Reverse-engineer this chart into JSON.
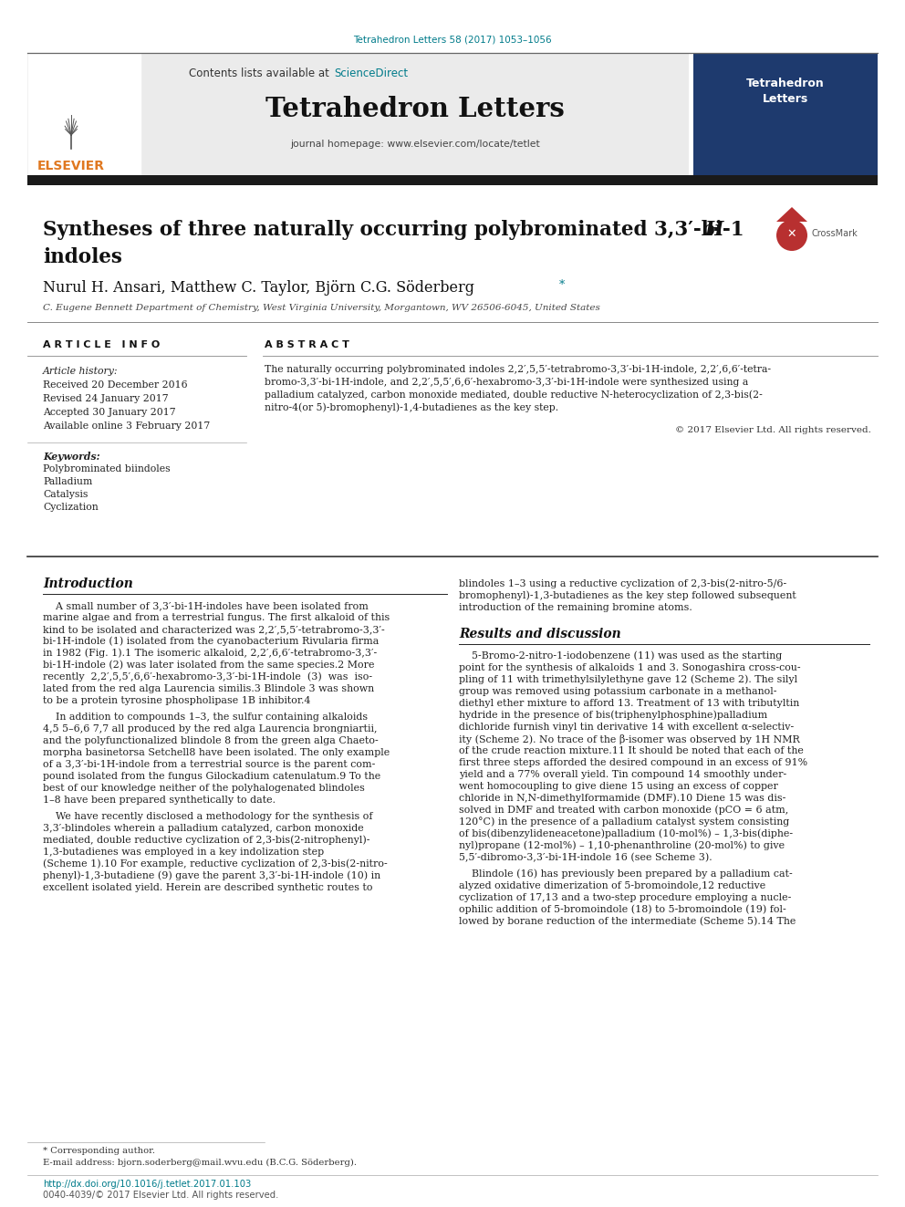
{
  "figsize": [
    9.92,
    13.23
  ],
  "dpi": 100,
  "bg_color": "#ffffff",
  "teal_color": "#007B8A",
  "orange_color": "#E07820",
  "dark_color": "#1a1a1a",
  "gray_bg": "#EBEBEB",
  "journal_ref": "Tetrahedron Letters 58 (2017) 1053–1056",
  "journal_title": "Tetrahedron Letters",
  "journal_homepage": "journal homepage: www.elsevier.com/locate/tetlet",
  "contents_prefix": "Contents lists available at ",
  "sciencedirect": "ScienceDirect",
  "title_line1": "Syntheses of three naturally occurring polybrominated 3,3′-bi-1",
  "title_H": "H",
  "title_line2": "indoles",
  "authors": "Nurul H. Ansari, Matthew C. Taylor, Björn C.G. Söderberg",
  "affil": "C. Eugene Bennett Department of Chemistry, West Virginia University, Morgantown, WV 26506-6045, United States",
  "art_info_header": "A R T I C L E   I N F O",
  "abstract_header": "A B S T R A C T",
  "art_history_label": "Article history:",
  "art_history": [
    "Received 20 December 2016",
    "Revised 24 January 2017",
    "Accepted 30 January 2017",
    "Available online 3 February 2017"
  ],
  "kw_label": "Keywords:",
  "keywords": [
    "Polybrominated biindoles",
    "Palladium",
    "Catalysis",
    "Cyclization"
  ],
  "abstract_lines": [
    "The naturally occurring polybrominated indoles 2,2′,5,5′-tetrabromo-3,3′-bi-1H-indole, 2,2′,6,6′-tetra-",
    "bromo-3,3′-bi-1H-indole, and 2,2′,5,5′,6,6′-hexabromo-3,3′-bi-1H-indole were synthesized using a",
    "palladium catalyzed, carbon monoxide mediated, double reductive N-heterocyclization of 2,3-bis(2-",
    "nitro-4(or 5)-bromophenyl)-1,4-butadienes as the key step."
  ],
  "copyright": "© 2017 Elsevier Ltd. All rights reserved.",
  "intro_header": "Introduction",
  "intro_lines1": [
    "    A small number of 3,3′-bi-1H-indoles have been isolated from",
    "marine algae and from a terrestrial fungus. The first alkaloid of this",
    "kind to be isolated and characterized was 2,2′,5,5′-tetrabromo-3,3′-",
    "bi-1H-indole (1) isolated from the cyanobacterium Rivularia firma",
    "in 1982 (Fig. 1).1 The isomeric alkaloid, 2,2′,6,6′-tetrabromo-3,3′-",
    "bi-1H-indole (2) was later isolated from the same species.2 More",
    "recently  2,2′,5,5′,6,6′-hexabromo-3,3′-bi-1H-indole  (3)  was  iso-",
    "lated from the red alga Laurencia similis.3 Blindole 3 was shown",
    "to be a protein tyrosine phospholipase 1B inhibitor.4"
  ],
  "intro_lines2": [
    "    In addition to compounds 1–3, the sulfur containing alkaloids",
    "4,5 5–6,6 7,7 all produced by the red alga Laurencia brongniartii,",
    "and the polyfunctionalized blindole 8 from the green alga Chaeto-",
    "morpha basinetorsa Setchell8 have been isolated. The only example",
    "of a 3,3′-bi-1H-indole from a terrestrial source is the parent com-",
    "pound isolated from the fungus Gilockadium catenulatum.9 To the",
    "best of our knowledge neither of the polyhalogenated blindoles",
    "1–8 have been prepared synthetically to date."
  ],
  "intro_lines3": [
    "    We have recently disclosed a methodology for the synthesis of",
    "3,3′-blindoles wherein a palladium catalyzed, carbon monoxide",
    "mediated, double reductive cyclization of 2,3-bis(2-nitrophenyl)-",
    "1,3-butadienes was employed in a key indolization step",
    "(Scheme 1).10 For example, reductive cyclization of 2,3-bis(2-nitro-",
    "phenyl)-1,3-butadiene (9) gave the parent 3,3′-bi-1H-indole (10) in",
    "excellent isolated yield. Herein are described synthetic routes to"
  ],
  "right_intro_lines": [
    "blindoles 1–3 using a reductive cyclization of 2,3-bis(2-nitro-5/6-",
    "bromophenyl)-1,3-butadienes as the key step followed subsequent",
    "introduction of the remaining bromine atoms."
  ],
  "results_header": "Results and discussion",
  "results_lines": [
    "    5-Bromo-2-nitro-1-iodobenzene (11) was used as the starting",
    "point for the synthesis of alkaloids 1 and 3. Sonogashira cross-cou-",
    "pling of 11 with trimethylsilylethyne gave 12 (Scheme 2). The silyl",
    "group was removed using potassium carbonate in a methanol-",
    "diethyl ether mixture to afford 13. Treatment of 13 with tributyltin",
    "hydride in the presence of bis(triphenylphosphine)palladium",
    "dichloride furnish vinyl tin derivative 14 with excellent α-selectiv-",
    "ity (Scheme 2). No trace of the β-isomer was observed by 1H NMR",
    "of the crude reaction mixture.11 It should be noted that each of the",
    "first three steps afforded the desired compound in an excess of 91%",
    "yield and a 77% overall yield. Tin compound 14 smoothly under-",
    "went homocoupling to give diene 15 using an excess of copper",
    "chloride in N,N-dimethylformamide (DMF).10 Diene 15 was dis-",
    "solved in DMF and treated with carbon monoxide (pCO = 6 atm,",
    "120°C) in the presence of a palladium catalyst system consisting",
    "of bis(dibenzylideneacetone)palladium (10-mol%) – 1,3-bis(diphe-",
    "nyl)propane (12-mol%) – 1,10-phenanthroline (20-mol%) to give",
    "5,5′-dibromo-3,3′-bi-1H-indole 16 (see Scheme 3)."
  ],
  "blindole_lines": [
    "    Blindole (16) has previously been prepared by a palladium cat-",
    "alyzed oxidative dimerization of 5-bromoindole,12 reductive",
    "cyclization of 17,13 and a two-step procedure employing a nucle-",
    "ophilic addition of 5-bromoindole (18) to 5-bromoindole (19) fol-",
    "lowed by borane reduction of the intermediate (Scheme 5).14 The"
  ],
  "footer_note1": "* Corresponding author.",
  "footer_note2": "E-mail address: bjorn.soderberg@mail.wvu.edu (B.C.G. Söderberg).",
  "footer_doi": "http://dx.doi.org/10.1016/j.tetlet.2017.01.103",
  "footer_issn": "0040-4039/© 2017 Elsevier Ltd. All rights reserved."
}
